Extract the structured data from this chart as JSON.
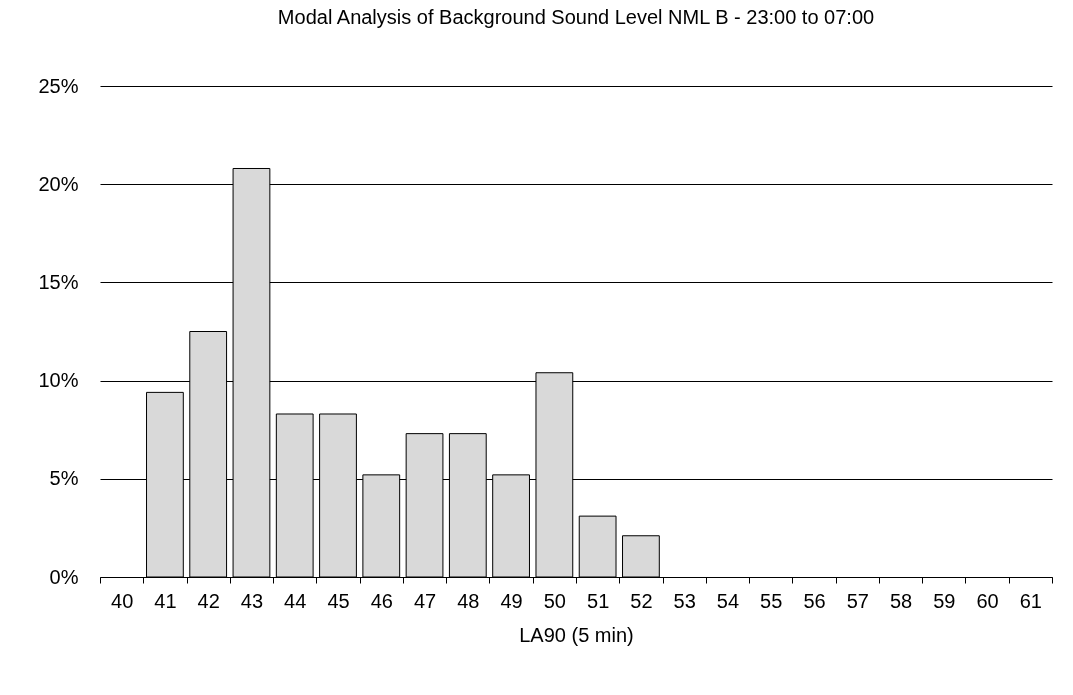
{
  "chart_data": {
    "type": "bar",
    "title": "Modal Analysis of Background Sound Level NML B  - 23:00 to 07:00",
    "xlabel": "LA90 (5 min)",
    "categories": [
      "40",
      "41",
      "42",
      "43",
      "44",
      "45",
      "46",
      "47",
      "48",
      "49",
      "50",
      "51",
      "52",
      "53",
      "54",
      "55",
      "56",
      "57",
      "58",
      "59",
      "60",
      "61"
    ],
    "values": [
      0,
      9.4,
      12.5,
      20.8,
      8.3,
      8.3,
      5.2,
      7.3,
      7.3,
      5.2,
      10.4,
      3.1,
      2.1,
      0,
      0,
      0,
      0,
      0,
      0,
      0,
      0,
      0
    ],
    "color": "#d9d9d9",
    "ylim": [
      0,
      25
    ],
    "yticks": [
      {
        "value": 0,
        "label": "0%"
      },
      {
        "value": 5,
        "label": "5%"
      },
      {
        "value": 10,
        "label": "10%"
      },
      {
        "value": 15,
        "label": "15%"
      },
      {
        "value": 20,
        "label": "20%"
      },
      {
        "value": 25,
        "label": "25%"
      }
    ],
    "grid": "y"
  }
}
